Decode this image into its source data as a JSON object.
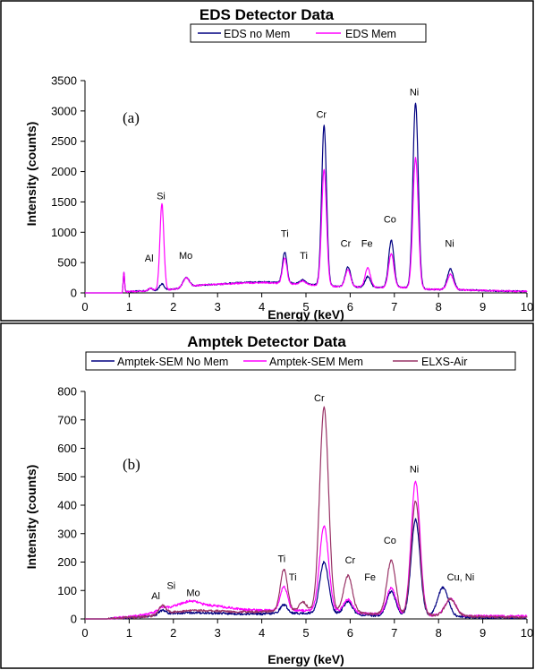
{
  "chart_data": [
    {
      "type": "line",
      "title": "EDS Detector Data",
      "xlabel": "Energy (keV)",
      "ylabel": "Intensity (counts)",
      "xlim": [
        0,
        10
      ],
      "ylim": [
        0,
        3500
      ],
      "x_ticks": [
        "0",
        "1",
        "2",
        "3",
        "4",
        "5",
        "6",
        "7",
        "8",
        "9",
        "10"
      ],
      "y_ticks": [
        "0",
        "500",
        "1000",
        "1500",
        "2000",
        "2500",
        "3000",
        "3500"
      ],
      "grid": false,
      "legend": "top-center",
      "panel_label": "(a)",
      "series": [
        {
          "name": "EDS no Mem",
          "color": "#000080",
          "baseline": [
            [
              0.85,
              0
            ],
            [
              0.86,
              20
            ],
            [
              1.0,
              20
            ],
            [
              1.5,
              40
            ],
            [
              2.0,
              60
            ],
            [
              2.6,
              130
            ],
            [
              3.0,
              140
            ],
            [
              3.5,
              170
            ],
            [
              4.0,
              180
            ],
            [
              4.4,
              170
            ],
            [
              4.9,
              150
            ],
            [
              5.6,
              110
            ],
            [
              6.5,
              90
            ],
            [
              7.2,
              90
            ],
            [
              7.8,
              60
            ],
            [
              8.5,
              50
            ],
            [
              9.5,
              30
            ],
            [
              10.0,
              25
            ]
          ],
          "peaks": [
            [
              0.88,
              320,
              0.015
            ],
            [
              1.48,
              40,
              0.04
            ],
            [
              1.74,
              100,
              0.05
            ],
            [
              2.29,
              160,
              0.07
            ],
            [
              4.52,
              510,
              0.05
            ],
            [
              4.93,
              70,
              0.06
            ],
            [
              5.41,
              2650,
              0.055
            ],
            [
              5.95,
              330,
              0.06
            ],
            [
              6.4,
              180,
              0.06
            ],
            [
              6.93,
              780,
              0.06
            ],
            [
              7.48,
              3060,
              0.06
            ],
            [
              8.27,
              340,
              0.07
            ]
          ]
        },
        {
          "name": "EDS Mem",
          "color": "#ff00ff",
          "baseline": [
            [
              0.85,
              0
            ],
            [
              0.86,
              20
            ],
            [
              1.0,
              20
            ],
            [
              1.5,
              40
            ],
            [
              2.0,
              60
            ],
            [
              2.6,
              130
            ],
            [
              3.0,
              140
            ],
            [
              3.5,
              160
            ],
            [
              4.0,
              170
            ],
            [
              4.4,
              160
            ],
            [
              4.9,
              140
            ],
            [
              5.6,
              110
            ],
            [
              6.5,
              90
            ],
            [
              7.2,
              90
            ],
            [
              7.8,
              60
            ],
            [
              8.5,
              50
            ],
            [
              9.5,
              30
            ],
            [
              10.0,
              25
            ]
          ],
          "peaks": [
            [
              0.88,
              320,
              0.015
            ],
            [
              1.48,
              40,
              0.04
            ],
            [
              1.74,
              1420,
              0.045
            ],
            [
              2.29,
              150,
              0.07
            ],
            [
              4.52,
              420,
              0.05
            ],
            [
              4.93,
              60,
              0.06
            ],
            [
              5.41,
              1920,
              0.055
            ],
            [
              5.95,
              280,
              0.06
            ],
            [
              6.4,
              320,
              0.06
            ],
            [
              6.93,
              560,
              0.06
            ],
            [
              7.48,
              2150,
              0.06
            ],
            [
              8.27,
              250,
              0.07
            ]
          ]
        }
      ],
      "annotations": [
        {
          "text": "Al",
          "x": 1.45,
          "y": 520
        },
        {
          "text": "Si",
          "x": 1.72,
          "y": 1540
        },
        {
          "text": "Mo",
          "x": 2.28,
          "y": 560
        },
        {
          "text": "Ti",
          "x": 4.52,
          "y": 920
        },
        {
          "text": "Ti",
          "x": 4.95,
          "y": 560
        },
        {
          "text": "Cr",
          "x": 5.35,
          "y": 2890
        },
        {
          "text": "Cr",
          "x": 5.9,
          "y": 760
        },
        {
          "text": "Fe",
          "x": 6.38,
          "y": 760
        },
        {
          "text": "Co",
          "x": 6.9,
          "y": 1160
        },
        {
          "text": "Ni",
          "x": 7.45,
          "y": 3260
        },
        {
          "text": "Ni",
          "x": 8.25,
          "y": 760
        }
      ]
    },
    {
      "type": "line",
      "title": "Amptek Detector Data",
      "xlabel": "Energy (keV)",
      "ylabel": "Intensity (counts)",
      "xlim": [
        0,
        10
      ],
      "ylim": [
        0,
        800
      ],
      "x_ticks": [
        "0",
        "1",
        "2",
        "3",
        "4",
        "5",
        "6",
        "7",
        "8",
        "9",
        "10"
      ],
      "y_ticks": [
        "0",
        "100",
        "200",
        "300",
        "400",
        "500",
        "600",
        "700",
        "800"
      ],
      "grid": false,
      "legend": "top-center",
      "panel_label": "(b)",
      "series": [
        {
          "name": "Amptek-SEM No Mem",
          "color": "#000080",
          "baseline": [
            [
              0.5,
              0
            ],
            [
              1.0,
              5
            ],
            [
              1.5,
              10
            ],
            [
              2.0,
              20
            ],
            [
              2.5,
              22
            ],
            [
              3.0,
              20
            ],
            [
              3.5,
              18
            ],
            [
              4.0,
              18
            ],
            [
              4.5,
              20
            ],
            [
              5.0,
              20
            ],
            [
              5.5,
              20
            ],
            [
              6.0,
              15
            ],
            [
              6.5,
              12
            ],
            [
              7.0,
              12
            ],
            [
              8.0,
              10
            ],
            [
              9.0,
              5
            ],
            [
              10.0,
              5
            ]
          ],
          "peaks": [
            [
              1.75,
              15,
              0.08
            ],
            [
              4.5,
              30,
              0.08
            ],
            [
              5.41,
              180,
              0.1
            ],
            [
              5.95,
              45,
              0.1
            ],
            [
              6.93,
              85,
              0.1
            ],
            [
              7.48,
              340,
              0.1
            ],
            [
              8.1,
              100,
              0.12
            ]
          ]
        },
        {
          "name": "Amptek-SEM Mem",
          "color": "#ff00ff",
          "baseline": [
            [
              0.5,
              0
            ],
            [
              1.0,
              8
            ],
            [
              1.5,
              20
            ],
            [
              2.0,
              45
            ],
            [
              2.5,
              55
            ],
            [
              3.0,
              45
            ],
            [
              3.5,
              35
            ],
            [
              4.0,
              30
            ],
            [
              4.5,
              30
            ],
            [
              5.0,
              30
            ],
            [
              5.5,
              28
            ],
            [
              6.0,
              22
            ],
            [
              6.5,
              18
            ],
            [
              7.0,
              15
            ],
            [
              8.0,
              12
            ],
            [
              9.0,
              10
            ],
            [
              10.0,
              10
            ]
          ],
          "peaks": [
            [
              1.75,
              10,
              0.08
            ],
            [
              2.35,
              10,
              0.15
            ],
            [
              4.5,
              85,
              0.08
            ],
            [
              5.41,
              300,
              0.1
            ],
            [
              5.95,
              45,
              0.1
            ],
            [
              6.93,
              95,
              0.1
            ],
            [
              7.48,
              470,
              0.1
            ],
            [
              8.27,
              60,
              0.12
            ]
          ]
        },
        {
          "name": "ELXS-Air",
          "color": "#993366",
          "baseline": [
            [
              0.5,
              0
            ],
            [
              1.0,
              5
            ],
            [
              1.5,
              10
            ],
            [
              2.0,
              25
            ],
            [
              2.5,
              30
            ],
            [
              3.0,
              28
            ],
            [
              3.5,
              25
            ],
            [
              4.0,
              25
            ],
            [
              4.5,
              30
            ],
            [
              5.0,
              30
            ],
            [
              5.5,
              25
            ],
            [
              6.0,
              22
            ],
            [
              6.5,
              18
            ],
            [
              7.0,
              15
            ],
            [
              8.0,
              12
            ],
            [
              9.0,
              8
            ],
            [
              10.0,
              5
            ]
          ],
          "peaks": [
            [
              1.75,
              30,
              0.08
            ],
            [
              4.5,
              145,
              0.08
            ],
            [
              4.93,
              30,
              0.08
            ],
            [
              5.41,
              720,
              0.1
            ],
            [
              5.95,
              130,
              0.1
            ],
            [
              6.93,
              190,
              0.1
            ],
            [
              7.48,
              400,
              0.1
            ],
            [
              8.27,
              60,
              0.12
            ]
          ]
        }
      ],
      "annotations": [
        {
          "text": "Al",
          "x": 1.6,
          "y": 70
        },
        {
          "text": "Si",
          "x": 1.95,
          "y": 105
        },
        {
          "text": "Mo",
          "x": 2.45,
          "y": 80
        },
        {
          "text": "Ti",
          "x": 4.45,
          "y": 200
        },
        {
          "text": "Ti",
          "x": 4.7,
          "y": 135
        },
        {
          "text": "Cr",
          "x": 5.3,
          "y": 765
        },
        {
          "text": "Cr",
          "x": 6.0,
          "y": 195
        },
        {
          "text": "Fe",
          "x": 6.45,
          "y": 135
        },
        {
          "text": "Co",
          "x": 6.9,
          "y": 265
        },
        {
          "text": "Ni",
          "x": 7.45,
          "y": 515
        },
        {
          "text": "Cu, Ni",
          "x": 8.5,
          "y": 135
        }
      ]
    }
  ]
}
